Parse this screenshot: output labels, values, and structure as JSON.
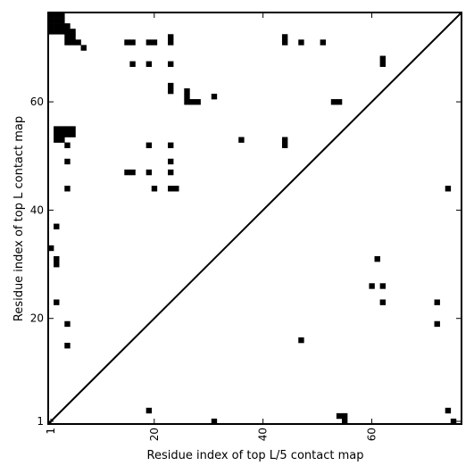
{
  "chart_data": {
    "type": "heatmap",
    "title": "",
    "xlabel": "Residue index of top L/5 contact map",
    "ylabel": "Residue index of top L contact map",
    "xlim": [
      0.5,
      76.5
    ],
    "ylim": [
      0.5,
      76.5
    ],
    "x_ticks": [
      {
        "value": 1,
        "label": "1"
      },
      {
        "value": 20,
        "label": "20"
      },
      {
        "value": 40,
        "label": "40"
      },
      {
        "value": 60,
        "label": "60"
      }
    ],
    "y_ticks": [
      {
        "value": 1,
        "label": "1"
      },
      {
        "value": 20,
        "label": "20"
      },
      {
        "value": 40,
        "label": "40"
      },
      {
        "value": 60,
        "label": "60"
      }
    ],
    "grid": false,
    "diagonal_line": true,
    "cell_color": "#000000",
    "background_color": "#ffffff",
    "upper_triangle_contacts": [
      [
        1,
        76
      ],
      [
        1,
        75
      ],
      [
        1,
        74
      ],
      [
        1,
        73
      ],
      [
        2,
        76
      ],
      [
        2,
        75
      ],
      [
        2,
        74
      ],
      [
        2,
        73
      ],
      [
        3,
        76
      ],
      [
        3,
        75
      ],
      [
        3,
        74
      ],
      [
        3,
        73
      ],
      [
        4,
        74
      ],
      [
        4,
        73
      ],
      [
        4,
        72
      ],
      [
        4,
        71
      ],
      [
        5,
        73
      ],
      [
        5,
        72
      ],
      [
        5,
        71
      ],
      [
        6,
        71
      ],
      [
        7,
        70
      ],
      [
        15,
        71
      ],
      [
        16,
        71
      ],
      [
        16,
        67
      ],
      [
        19,
        71
      ],
      [
        20,
        71
      ],
      [
        19,
        67
      ],
      [
        23,
        72
      ],
      [
        23,
        71
      ],
      [
        23,
        67
      ],
      [
        23,
        63
      ],
      [
        23,
        62
      ],
      [
        26,
        62
      ],
      [
        26,
        61
      ],
      [
        26,
        60
      ],
      [
        27,
        60
      ],
      [
        28,
        60
      ],
      [
        31,
        61
      ],
      [
        44,
        72
      ],
      [
        44,
        71
      ],
      [
        47,
        71
      ],
      [
        51,
        71
      ],
      [
        62,
        68
      ],
      [
        62,
        67
      ],
      [
        53,
        60
      ],
      [
        54,
        60
      ]
    ],
    "lower_triangle_contacts": [
      [
        2,
        55
      ],
      [
        2,
        54
      ],
      [
        2,
        53
      ],
      [
        3,
        55
      ],
      [
        3,
        54
      ],
      [
        3,
        53
      ],
      [
        4,
        55
      ],
      [
        4,
        54
      ],
      [
        5,
        55
      ],
      [
        5,
        54
      ],
      [
        4,
        52
      ],
      [
        4,
        49
      ],
      [
        4,
        44
      ],
      [
        15,
        47
      ],
      [
        16,
        47
      ],
      [
        19,
        52
      ],
      [
        19,
        47
      ],
      [
        20,
        44
      ],
      [
        23,
        52
      ],
      [
        23,
        49
      ],
      [
        23,
        47
      ],
      [
        23,
        44
      ],
      [
        24,
        44
      ],
      [
        36,
        53
      ],
      [
        44,
        53
      ],
      [
        44,
        52
      ],
      [
        2,
        37
      ],
      [
        1,
        33
      ],
      [
        2,
        31
      ],
      [
        2,
        30
      ],
      [
        2,
        23
      ],
      [
        61,
        31
      ],
      [
        60,
        26
      ],
      [
        62,
        26
      ],
      [
        62,
        23
      ],
      [
        72,
        23
      ],
      [
        72,
        19
      ],
      [
        74,
        44
      ],
      [
        4,
        19
      ],
      [
        4,
        15
      ],
      [
        47,
        16
      ],
      [
        19,
        3
      ],
      [
        31,
        1
      ],
      [
        54,
        2
      ],
      [
        55,
        2
      ],
      [
        55,
        1
      ],
      [
        74,
        3
      ],
      [
        75,
        1
      ]
    ]
  }
}
